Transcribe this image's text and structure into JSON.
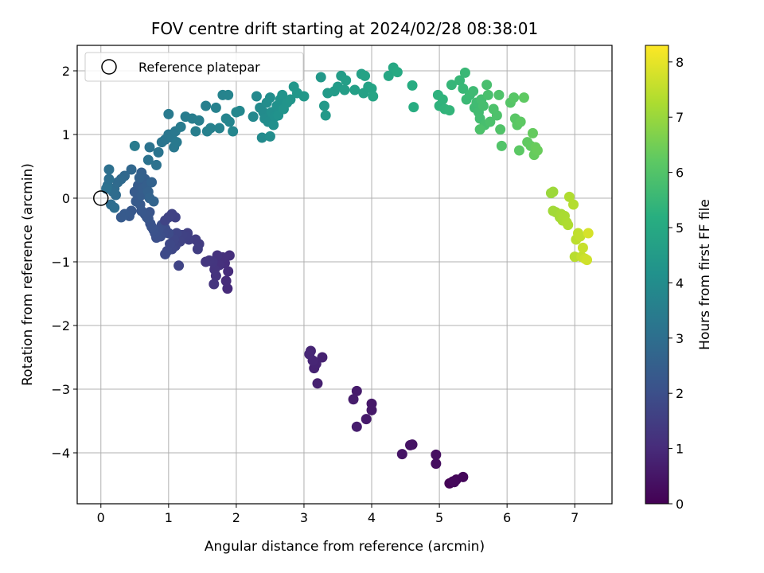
{
  "chart_data": {
    "type": "scatter",
    "title": "FOV centre drift starting at 2024/02/28 08:38:01",
    "xlabel": "Angular distance from reference (arcmin)",
    "ylabel": "Rotation from reference (arcmin)",
    "xlim": [
      -0.35,
      7.55
    ],
    "ylim": [
      -4.8,
      2.4
    ],
    "xticks": [
      0,
      1,
      2,
      3,
      4,
      5,
      6,
      7
    ],
    "yticks": [
      -4,
      -3,
      -2,
      -1,
      0,
      1,
      2
    ],
    "grid": true,
    "legend": {
      "placement": "top-left",
      "entries": [
        "Reference platepar"
      ]
    },
    "reference_point": {
      "x": 0,
      "y": 0
    },
    "colorbar": {
      "label": "Hours from first FF file",
      "range": [
        0,
        8.3
      ],
      "ticks": [
        0,
        1,
        2,
        3,
        4,
        5,
        6,
        7,
        8
      ],
      "colormap": "viridis"
    },
    "points": [
      {
        "x": 5.15,
        "y": -4.48,
        "c": 0.05
      },
      {
        "x": 5.2,
        "y": -4.45,
        "c": 0.1
      },
      {
        "x": 5.25,
        "y": -4.42,
        "c": 0.12
      },
      {
        "x": 5.35,
        "y": -4.38,
        "c": 0.15
      },
      {
        "x": 5.22,
        "y": -4.46,
        "c": 0.18
      },
      {
        "x": 4.95,
        "y": -4.17,
        "c": 0.3
      },
      {
        "x": 4.95,
        "y": -4.03,
        "c": 0.32
      },
      {
        "x": 4.6,
        "y": -3.87,
        "c": 0.4
      },
      {
        "x": 4.57,
        "y": -3.88,
        "c": 0.42
      },
      {
        "x": 4.45,
        "y": -4.02,
        "c": 0.45
      },
      {
        "x": 4.0,
        "y": -3.23,
        "c": 0.55
      },
      {
        "x": 4.0,
        "y": -3.33,
        "c": 0.57
      },
      {
        "x": 3.92,
        "y": -3.47,
        "c": 0.6
      },
      {
        "x": 3.78,
        "y": -3.03,
        "c": 0.62
      },
      {
        "x": 3.73,
        "y": -3.16,
        "c": 0.65
      },
      {
        "x": 3.78,
        "y": -3.59,
        "c": 0.67
      },
      {
        "x": 3.2,
        "y": -2.91,
        "c": 0.75
      },
      {
        "x": 3.27,
        "y": -2.5,
        "c": 0.77
      },
      {
        "x": 3.15,
        "y": -2.67,
        "c": 0.8
      },
      {
        "x": 3.18,
        "y": -2.6,
        "c": 0.82
      },
      {
        "x": 3.1,
        "y": -2.4,
        "c": 0.85
      },
      {
        "x": 3.13,
        "y": -2.55,
        "c": 0.87
      },
      {
        "x": 3.08,
        "y": -2.45,
        "c": 0.9
      },
      {
        "x": 1.87,
        "y": -1.42,
        "c": 1.0
      },
      {
        "x": 1.85,
        "y": -1.3,
        "c": 1.02
      },
      {
        "x": 1.88,
        "y": -1.15,
        "c": 1.05
      },
      {
        "x": 1.83,
        "y": -1.02,
        "c": 1.07
      },
      {
        "x": 1.9,
        "y": -0.9,
        "c": 1.1
      },
      {
        "x": 1.8,
        "y": -0.93,
        "c": 1.12
      },
      {
        "x": 1.75,
        "y": -1.05,
        "c": 1.15
      },
      {
        "x": 1.72,
        "y": -0.9,
        "c": 1.17
      },
      {
        "x": 1.7,
        "y": -1.22,
        "c": 1.2
      },
      {
        "x": 1.68,
        "y": -1.12,
        "c": 1.22
      },
      {
        "x": 1.67,
        "y": -1.35,
        "c": 1.25
      },
      {
        "x": 1.65,
        "y": -1.0,
        "c": 1.27
      },
      {
        "x": 1.6,
        "y": -0.98,
        "c": 1.3
      },
      {
        "x": 1.55,
        "y": -1.0,
        "c": 1.32
      },
      {
        "x": 1.45,
        "y": -0.72,
        "c": 1.45
      },
      {
        "x": 1.4,
        "y": -0.65,
        "c": 1.5
      },
      {
        "x": 1.43,
        "y": -0.8,
        "c": 1.52
      },
      {
        "x": 1.3,
        "y": -0.65,
        "c": 1.55
      },
      {
        "x": 1.28,
        "y": -0.55,
        "c": 1.57
      },
      {
        "x": 1.25,
        "y": -0.6,
        "c": 1.6
      },
      {
        "x": 1.2,
        "y": -0.58,
        "c": 1.62
      },
      {
        "x": 1.17,
        "y": -0.68,
        "c": 1.65
      },
      {
        "x": 1.15,
        "y": -1.06,
        "c": 1.67
      },
      {
        "x": 1.1,
        "y": -0.75,
        "c": 1.7
      },
      {
        "x": 1.12,
        "y": -0.55,
        "c": 1.72
      },
      {
        "x": 1.08,
        "y": -0.65,
        "c": 1.75
      },
      {
        "x": 1.05,
        "y": -0.8,
        "c": 1.77
      },
      {
        "x": 1.02,
        "y": -0.72,
        "c": 1.8
      },
      {
        "x": 0.98,
        "y": -0.83,
        "c": 1.82
      },
      {
        "x": 0.95,
        "y": -0.88,
        "c": 1.85
      },
      {
        "x": 1.0,
        "y": -0.55,
        "c": 1.87
      },
      {
        "x": 0.95,
        "y": -0.48,
        "c": 1.9
      },
      {
        "x": 0.92,
        "y": -0.55,
        "c": 1.92
      },
      {
        "x": 0.9,
        "y": -0.42,
        "c": 1.95
      },
      {
        "x": 0.88,
        "y": -0.6,
        "c": 1.97
      },
      {
        "x": 0.85,
        "y": -0.5,
        "c": 2.0
      },
      {
        "x": 0.82,
        "y": -0.62,
        "c": 2.02
      },
      {
        "x": 0.8,
        "y": -0.55,
        "c": 2.05
      },
      {
        "x": 0.78,
        "y": -0.5,
        "c": 2.07
      },
      {
        "x": 0.75,
        "y": -0.45,
        "c": 2.1
      },
      {
        "x": 0.73,
        "y": -0.4,
        "c": 2.12
      },
      {
        "x": 0.7,
        "y": -0.32,
        "c": 2.15
      },
      {
        "x": 0.72,
        "y": -0.22,
        "c": 2.17
      },
      {
        "x": 0.68,
        "y": -0.3,
        "c": 2.2
      },
      {
        "x": 0.65,
        "y": -0.25,
        "c": 2.22
      },
      {
        "x": 1.1,
        "y": -0.3,
        "c": 1.6
      },
      {
        "x": 1.05,
        "y": -0.25,
        "c": 1.62
      },
      {
        "x": 1.0,
        "y": -0.3,
        "c": 1.65
      },
      {
        "x": 0.95,
        "y": -0.35,
        "c": 1.67
      },
      {
        "x": 0.6,
        "y": -0.2,
        "c": 2.25
      },
      {
        "x": 0.58,
        "y": -0.1,
        "c": 2.3
      },
      {
        "x": 0.55,
        "y": 0.0,
        "c": 2.32
      },
      {
        "x": 0.52,
        "y": -0.05,
        "c": 2.35
      },
      {
        "x": 0.5,
        "y": 0.1,
        "c": 2.37
      },
      {
        "x": 0.55,
        "y": 0.2,
        "c": 2.4
      },
      {
        "x": 0.6,
        "y": 0.05,
        "c": 2.42
      },
      {
        "x": 0.62,
        "y": 0.15,
        "c": 2.45
      },
      {
        "x": 0.65,
        "y": 0.3,
        "c": 2.47
      },
      {
        "x": 0.68,
        "y": 0.2,
        "c": 2.5
      },
      {
        "x": 0.6,
        "y": 0.4,
        "c": 2.52
      },
      {
        "x": 0.57,
        "y": 0.32,
        "c": 2.55
      },
      {
        "x": 0.7,
        "y": 0.1,
        "c": 2.57
      },
      {
        "x": 0.75,
        "y": 0.25,
        "c": 2.6
      },
      {
        "x": 0.72,
        "y": 0.0,
        "c": 2.62
      },
      {
        "x": 0.78,
        "y": -0.05,
        "c": 2.65
      },
      {
        "x": 0.45,
        "y": -0.2,
        "c": 2.27
      },
      {
        "x": 0.42,
        "y": -0.28,
        "c": 2.3
      },
      {
        "x": 0.35,
        "y": -0.25,
        "c": 2.32
      },
      {
        "x": 0.3,
        "y": -0.3,
        "c": 2.35
      },
      {
        "x": 0.45,
        "y": 0.45,
        "c": 2.75
      },
      {
        "x": 0.35,
        "y": 0.35,
        "c": 2.8
      },
      {
        "x": 0.3,
        "y": 0.3,
        "c": 2.82
      },
      {
        "x": 0.25,
        "y": 0.25,
        "c": 2.85
      },
      {
        "x": 0.2,
        "y": 0.15,
        "c": 2.87
      },
      {
        "x": 0.22,
        "y": 0.05,
        "c": 2.9
      },
      {
        "x": 0.18,
        "y": 0.1,
        "c": 2.92
      },
      {
        "x": 0.15,
        "y": -0.1,
        "c": 2.95
      },
      {
        "x": 0.2,
        "y": -0.15,
        "c": 2.97
      },
      {
        "x": 0.1,
        "y": 0.2,
        "c": 3.0
      },
      {
        "x": 0.12,
        "y": 0.3,
        "c": 3.02
      },
      {
        "x": 0.12,
        "y": 0.45,
        "c": 3.05
      },
      {
        "x": 0.08,
        "y": 0.15,
        "c": 3.07
      },
      {
        "x": 0.82,
        "y": 0.52,
        "c": 3.1
      },
      {
        "x": 0.7,
        "y": 0.6,
        "c": 3.12
      },
      {
        "x": 0.72,
        "y": 0.8,
        "c": 3.15
      },
      {
        "x": 0.85,
        "y": 0.72,
        "c": 3.17
      },
      {
        "x": 0.9,
        "y": 0.88,
        "c": 3.2
      },
      {
        "x": 0.95,
        "y": 0.92,
        "c": 3.22
      },
      {
        "x": 1.0,
        "y": 1.0,
        "c": 3.25
      },
      {
        "x": 1.05,
        "y": 0.95,
        "c": 3.27
      },
      {
        "x": 1.1,
        "y": 1.05,
        "c": 3.3
      },
      {
        "x": 1.08,
        "y": 0.8,
        "c": 3.32
      },
      {
        "x": 1.12,
        "y": 0.88,
        "c": 3.35
      },
      {
        "x": 1.0,
        "y": 1.32,
        "c": 3.37
      },
      {
        "x": 0.5,
        "y": 0.82,
        "c": 3.4
      },
      {
        "x": 1.18,
        "y": 1.12,
        "c": 3.42
      },
      {
        "x": 1.25,
        "y": 1.28,
        "c": 3.45
      },
      {
        "x": 1.35,
        "y": 1.25,
        "c": 3.47
      },
      {
        "x": 1.4,
        "y": 1.05,
        "c": 3.5
      },
      {
        "x": 1.45,
        "y": 1.22,
        "c": 3.52
      },
      {
        "x": 1.55,
        "y": 1.45,
        "c": 3.55
      },
      {
        "x": 1.57,
        "y": 1.05,
        "c": 3.57
      },
      {
        "x": 1.62,
        "y": 1.1,
        "c": 3.6
      },
      {
        "x": 1.7,
        "y": 1.42,
        "c": 3.62
      },
      {
        "x": 1.75,
        "y": 1.1,
        "c": 3.65
      },
      {
        "x": 1.8,
        "y": 1.62,
        "c": 3.67
      },
      {
        "x": 1.85,
        "y": 1.25,
        "c": 3.7
      },
      {
        "x": 1.88,
        "y": 1.62,
        "c": 3.72
      },
      {
        "x": 1.9,
        "y": 1.2,
        "c": 3.75
      },
      {
        "x": 1.95,
        "y": 1.05,
        "c": 3.77
      },
      {
        "x": 2.0,
        "y": 1.35,
        "c": 3.8
      },
      {
        "x": 2.05,
        "y": 1.37,
        "c": 3.82
      },
      {
        "x": 2.25,
        "y": 1.28,
        "c": 3.85
      },
      {
        "x": 2.3,
        "y": 1.6,
        "c": 3.87
      },
      {
        "x": 2.35,
        "y": 1.42,
        "c": 3.9
      },
      {
        "x": 2.38,
        "y": 0.95,
        "c": 3.92
      },
      {
        "x": 2.4,
        "y": 1.35,
        "c": 3.95
      },
      {
        "x": 2.42,
        "y": 1.25,
        "c": 3.97
      },
      {
        "x": 2.45,
        "y": 1.5,
        "c": 4.0
      },
      {
        "x": 2.47,
        "y": 1.2,
        "c": 4.02
      },
      {
        "x": 2.5,
        "y": 1.58,
        "c": 4.05
      },
      {
        "x": 2.52,
        "y": 1.35,
        "c": 4.07
      },
      {
        "x": 2.55,
        "y": 1.15,
        "c": 4.1
      },
      {
        "x": 2.57,
        "y": 1.28,
        "c": 4.12
      },
      {
        "x": 2.6,
        "y": 1.45,
        "c": 4.15
      },
      {
        "x": 2.62,
        "y": 1.3,
        "c": 4.17
      },
      {
        "x": 2.65,
        "y": 1.55,
        "c": 4.2
      },
      {
        "x": 2.68,
        "y": 1.62,
        "c": 4.22
      },
      {
        "x": 2.7,
        "y": 1.4,
        "c": 4.25
      },
      {
        "x": 2.75,
        "y": 1.5,
        "c": 4.27
      },
      {
        "x": 2.8,
        "y": 1.55,
        "c": 4.3
      },
      {
        "x": 2.85,
        "y": 1.75,
        "c": 4.32
      },
      {
        "x": 2.9,
        "y": 1.65,
        "c": 4.35
      },
      {
        "x": 3.0,
        "y": 1.6,
        "c": 4.37
      },
      {
        "x": 2.5,
        "y": 0.97,
        "c": 4.0
      },
      {
        "x": 3.25,
        "y": 1.9,
        "c": 4.4
      },
      {
        "x": 3.3,
        "y": 1.45,
        "c": 4.42
      },
      {
        "x": 3.32,
        "y": 1.3,
        "c": 4.45
      },
      {
        "x": 3.35,
        "y": 1.65,
        "c": 4.47
      },
      {
        "x": 3.45,
        "y": 1.68,
        "c": 4.5
      },
      {
        "x": 3.5,
        "y": 1.75,
        "c": 4.52
      },
      {
        "x": 3.55,
        "y": 1.92,
        "c": 4.55
      },
      {
        "x": 3.6,
        "y": 1.7,
        "c": 4.57
      },
      {
        "x": 3.62,
        "y": 1.85,
        "c": 4.6
      },
      {
        "x": 3.75,
        "y": 1.7,
        "c": 4.65
      },
      {
        "x": 3.85,
        "y": 1.95,
        "c": 4.7
      },
      {
        "x": 3.88,
        "y": 1.65,
        "c": 4.72
      },
      {
        "x": 3.9,
        "y": 1.92,
        "c": 4.75
      },
      {
        "x": 3.95,
        "y": 1.75,
        "c": 4.77
      },
      {
        "x": 4.0,
        "y": 1.72,
        "c": 4.8
      },
      {
        "x": 4.02,
        "y": 1.6,
        "c": 4.82
      },
      {
        "x": 4.25,
        "y": 1.92,
        "c": 4.9
      },
      {
        "x": 4.32,
        "y": 2.05,
        "c": 4.95
      },
      {
        "x": 4.38,
        "y": 1.98,
        "c": 5.0
      },
      {
        "x": 4.6,
        "y": 1.77,
        "c": 5.1
      },
      {
        "x": 4.62,
        "y": 1.43,
        "c": 5.12
      },
      {
        "x": 4.98,
        "y": 1.62,
        "c": 5.3
      },
      {
        "x": 5.0,
        "y": 1.45,
        "c": 5.32
      },
      {
        "x": 5.05,
        "y": 1.55,
        "c": 5.35
      },
      {
        "x": 5.08,
        "y": 1.4,
        "c": 5.37
      },
      {
        "x": 5.15,
        "y": 1.38,
        "c": 5.4
      },
      {
        "x": 5.18,
        "y": 1.78,
        "c": 5.45
      },
      {
        "x": 5.3,
        "y": 1.85,
        "c": 5.5
      },
      {
        "x": 5.35,
        "y": 1.72,
        "c": 5.52
      },
      {
        "x": 5.38,
        "y": 1.97,
        "c": 5.55
      },
      {
        "x": 5.4,
        "y": 1.55,
        "c": 5.57
      },
      {
        "x": 5.45,
        "y": 1.62,
        "c": 5.6
      },
      {
        "x": 5.5,
        "y": 1.68,
        "c": 5.62
      },
      {
        "x": 5.52,
        "y": 1.42,
        "c": 5.65
      },
      {
        "x": 5.55,
        "y": 1.5,
        "c": 5.67
      },
      {
        "x": 5.58,
        "y": 1.35,
        "c": 5.7
      },
      {
        "x": 5.6,
        "y": 1.25,
        "c": 5.72
      },
      {
        "x": 5.62,
        "y": 1.55,
        "c": 5.75
      },
      {
        "x": 5.65,
        "y": 1.45,
        "c": 5.77
      },
      {
        "x": 5.67,
        "y": 1.15,
        "c": 5.8
      },
      {
        "x": 5.7,
        "y": 1.78,
        "c": 5.82
      },
      {
        "x": 5.72,
        "y": 1.62,
        "c": 5.85
      },
      {
        "x": 5.75,
        "y": 1.2,
        "c": 5.87
      },
      {
        "x": 5.8,
        "y": 1.4,
        "c": 5.9
      },
      {
        "x": 5.85,
        "y": 1.3,
        "c": 5.92
      },
      {
        "x": 5.88,
        "y": 1.62,
        "c": 5.95
      },
      {
        "x": 5.9,
        "y": 1.08,
        "c": 5.97
      },
      {
        "x": 5.92,
        "y": 0.82,
        "c": 6.0
      },
      {
        "x": 5.6,
        "y": 1.08,
        "c": 5.9
      },
      {
        "x": 6.05,
        "y": 1.5,
        "c": 6.05
      },
      {
        "x": 6.1,
        "y": 1.58,
        "c": 6.1
      },
      {
        "x": 6.12,
        "y": 1.25,
        "c": 6.12
      },
      {
        "x": 6.15,
        "y": 1.15,
        "c": 6.15
      },
      {
        "x": 6.18,
        "y": 0.75,
        "c": 6.17
      },
      {
        "x": 6.2,
        "y": 1.2,
        "c": 6.2
      },
      {
        "x": 6.25,
        "y": 1.58,
        "c": 6.22
      },
      {
        "x": 6.3,
        "y": 0.88,
        "c": 6.25
      },
      {
        "x": 6.35,
        "y": 0.82,
        "c": 6.27
      },
      {
        "x": 6.38,
        "y": 1.02,
        "c": 6.3
      },
      {
        "x": 6.4,
        "y": 0.68,
        "c": 6.32
      },
      {
        "x": 6.42,
        "y": 0.8,
        "c": 6.35
      },
      {
        "x": 6.45,
        "y": 0.75,
        "c": 6.37
      },
      {
        "x": 6.65,
        "y": 0.08,
        "c": 7.0
      },
      {
        "x": 6.68,
        "y": 0.1,
        "c": 7.05
      },
      {
        "x": 6.68,
        "y": -0.2,
        "c": 7.1
      },
      {
        "x": 6.72,
        "y": -0.22,
        "c": 7.12
      },
      {
        "x": 6.78,
        "y": -0.3,
        "c": 7.15
      },
      {
        "x": 6.8,
        "y": -0.25,
        "c": 7.17
      },
      {
        "x": 6.82,
        "y": -0.35,
        "c": 7.2
      },
      {
        "x": 6.85,
        "y": -0.28,
        "c": 7.22
      },
      {
        "x": 6.88,
        "y": -0.38,
        "c": 7.25
      },
      {
        "x": 6.9,
        "y": -0.42,
        "c": 7.27
      },
      {
        "x": 6.92,
        "y": 0.02,
        "c": 7.3
      },
      {
        "x": 6.98,
        "y": -0.1,
        "c": 7.35
      },
      {
        "x": 7.0,
        "y": -0.92,
        "c": 7.4
      },
      {
        "x": 7.02,
        "y": -0.65,
        "c": 7.45
      },
      {
        "x": 7.05,
        "y": -0.55,
        "c": 7.5
      },
      {
        "x": 7.08,
        "y": -0.6,
        "c": 7.52
      },
      {
        "x": 7.1,
        "y": -0.92,
        "c": 7.55
      },
      {
        "x": 7.12,
        "y": -0.78,
        "c": 7.6
      },
      {
        "x": 7.15,
        "y": -0.95,
        "c": 7.65
      },
      {
        "x": 7.18,
        "y": -0.97,
        "c": 7.7
      },
      {
        "x": 7.2,
        "y": -0.55,
        "c": 7.8
      }
    ]
  }
}
